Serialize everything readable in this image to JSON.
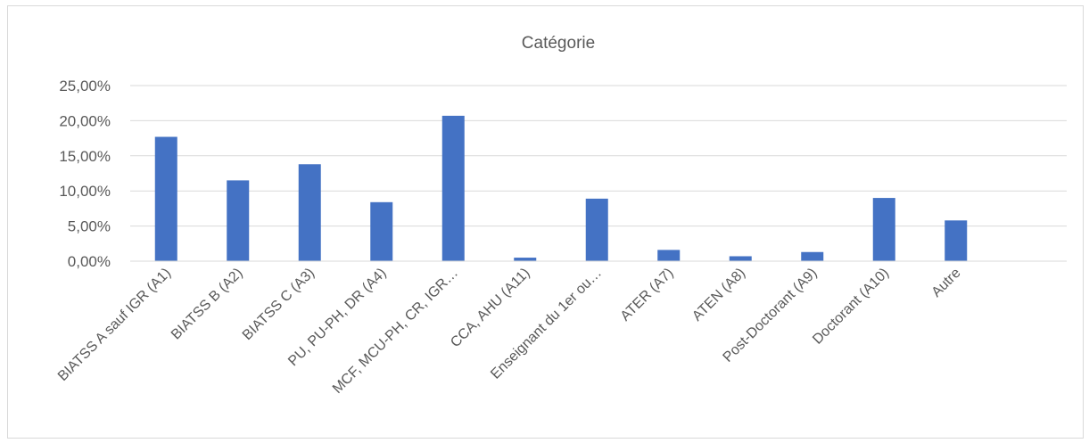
{
  "chart_data": {
    "type": "bar",
    "title": "Catégorie",
    "xlabel": "",
    "ylabel": "",
    "ylim": [
      0,
      25
    ],
    "y_ticks": [
      0,
      5,
      10,
      15,
      20,
      25
    ],
    "y_tick_labels": [
      "0,00%",
      "5,00%",
      "10,00%",
      "15,00%",
      "20,00%",
      "25,00%"
    ],
    "grid": true,
    "legend": "none",
    "bar_color": "#4472c4",
    "grid_color": "#d9d9d9",
    "categories": [
      "BIATSS A sauf IGR (A1)",
      "BIATSS B (A2)",
      "BIATSS C (A3)",
      "PU, PU-PH, DR (A4)",
      "MCF, MCU-PH, CR, IGR…",
      "CCA, AHU (A11)",
      "Enseignant du 1er ou…",
      "ATER (A7)",
      "ATEN (A8)",
      "Post-Doctorant (A9)",
      "Doctorant (A10)",
      "Autre"
    ],
    "values": [
      17.7,
      11.5,
      13.8,
      8.4,
      20.7,
      0.5,
      8.9,
      1.6,
      0.7,
      1.3,
      9.0,
      5.8
    ]
  }
}
